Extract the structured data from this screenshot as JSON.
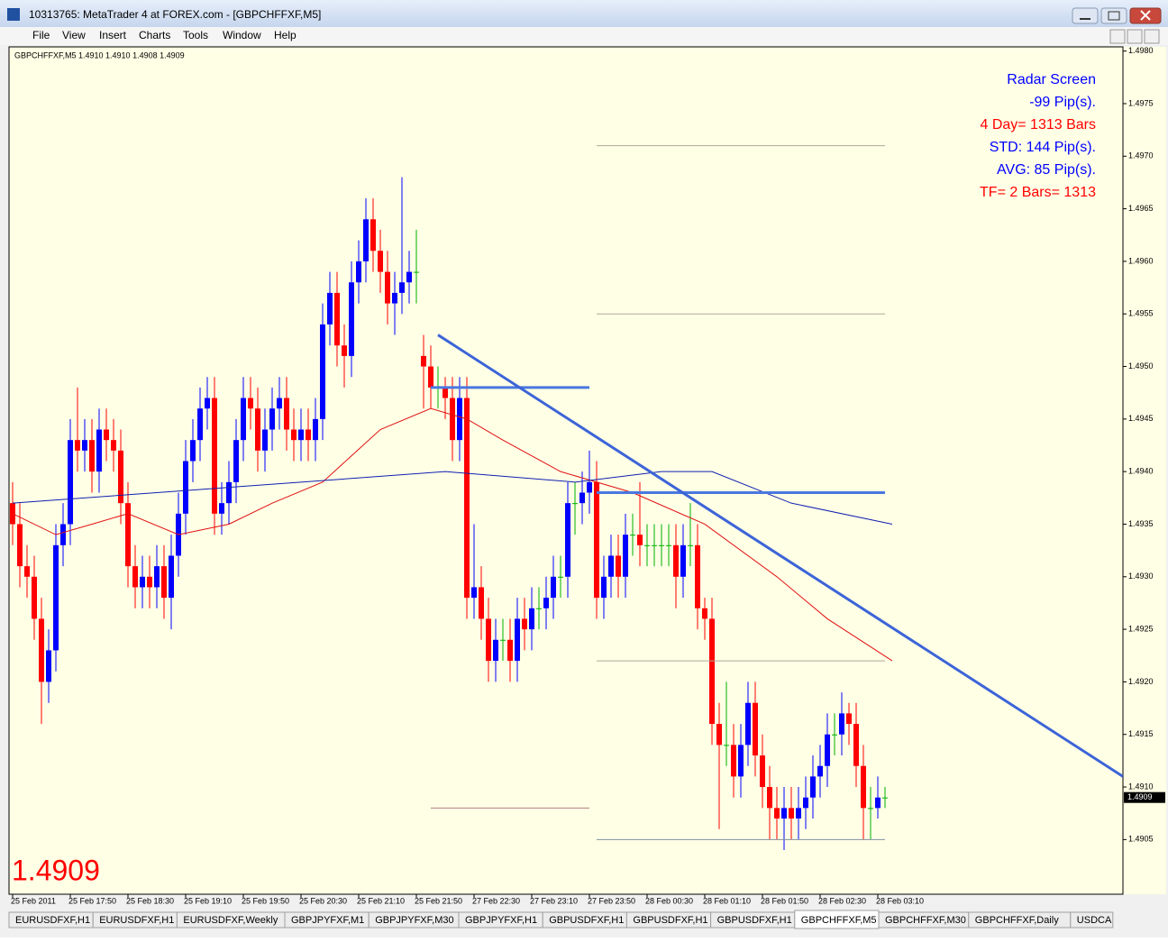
{
  "window": {
    "title": "10313765: MetaTrader 4 at FOREX.com - [GBPCHFFXF,M5]",
    "menu": [
      "File",
      "View",
      "Insert",
      "Charts",
      "Tools",
      "Window",
      "Help"
    ],
    "tabs": [
      "EURUSDFXF,H1",
      "EURUSDFXF,H1",
      "EURUSDFXF,Weekly",
      "GBPJPYFXF,M1",
      "GBPJPYFXF,M30",
      "GBPJPYFXF,H1",
      "GBPUSDFXF,H1",
      "GBPUSDFXF,H1",
      "GBPUSDFXF,H1",
      "GBPCHFFXF,M5",
      "GBPCHFFXF,M30",
      "GBPCHFFXF,Daily",
      "USDCA"
    ],
    "active_tab": 9
  },
  "chart_data": {
    "type": "candlestick",
    "symbol_info": "GBPCHFFXF,M5  1.4910 1.4910 1.4908 1.4909",
    "categories": [
      "25 Feb 2011",
      null,
      null,
      null,
      null,
      null,
      null,
      null,
      "25 Feb 17:50",
      null,
      null,
      null,
      null,
      null,
      null,
      null,
      "25 Feb 18:30",
      null,
      null,
      null,
      null,
      null,
      null,
      null,
      "25 Feb 19:10",
      null,
      null,
      null,
      null,
      null,
      null,
      null,
      "25 Feb 19:50",
      null,
      null,
      null,
      null,
      null,
      null,
      null,
      "25 Feb 20:30",
      null,
      null,
      null,
      null,
      null,
      null,
      null,
      "25 Feb 21:10",
      null,
      null,
      null,
      null,
      null,
      null,
      null,
      "25 Feb 21:50",
      null,
      null,
      null,
      null,
      null,
      null,
      null,
      "27 Feb 22:30",
      null,
      null,
      null,
      null,
      null,
      null,
      null,
      "27 Feb 23:10",
      null,
      null,
      null,
      null,
      null,
      null,
      null,
      "27 Feb 23:50",
      null,
      null,
      null,
      null,
      null,
      null,
      null,
      "28 Feb 00:30",
      null,
      null,
      null,
      null,
      null,
      null,
      null,
      "28 Feb 01:10",
      null,
      null,
      null,
      null,
      null,
      null,
      null,
      "28 Feb 01:50",
      null,
      null,
      null,
      null,
      null,
      null,
      null,
      "28 Feb 02:30",
      null,
      null,
      null,
      null,
      null,
      null,
      null,
      "28 Feb 03:10",
      null
    ],
    "candles": [
      [
        1.4937,
        1.4939,
        1.4933,
        1.4935
      ],
      [
        1.4935,
        1.4937,
        1.4929,
        1.4931
      ],
      [
        1.4931,
        1.4933,
        1.4928,
        1.493
      ],
      [
        1.493,
        1.4932,
        1.4924,
        1.4926
      ],
      [
        1.4926,
        1.4928,
        1.4916,
        1.492
      ],
      [
        1.492,
        1.4925,
        1.4918,
        1.4923
      ],
      [
        1.4923,
        1.4935,
        1.4921,
        1.4933
      ],
      [
        1.4933,
        1.4937,
        1.4931,
        1.4935
      ],
      [
        1.4935,
        1.4945,
        1.4933,
        1.4943
      ],
      [
        1.4943,
        1.4948,
        1.494,
        1.4942
      ],
      [
        1.4942,
        1.4945,
        1.494,
        1.4943
      ],
      [
        1.4943,
        1.4945,
        1.4938,
        1.494
      ],
      [
        1.494,
        1.4946,
        1.4938,
        1.4944
      ],
      [
        1.4944,
        1.4946,
        1.4941,
        1.4943
      ],
      [
        1.4943,
        1.4945,
        1.494,
        1.4942
      ],
      [
        1.4942,
        1.4944,
        1.4935,
        1.4937
      ],
      [
        1.4937,
        1.4939,
        1.4929,
        1.4931
      ],
      [
        1.4931,
        1.4933,
        1.4927,
        1.4929
      ],
      [
        1.4929,
        1.4932,
        1.4927,
        1.493
      ],
      [
        1.493,
        1.4932,
        1.4927,
        1.4929
      ],
      [
        1.4929,
        1.4933,
        1.4927,
        1.4931
      ],
      [
        1.4931,
        1.4933,
        1.4926,
        1.4928
      ],
      [
        1.4928,
        1.4934,
        1.4925,
        1.4932
      ],
      [
        1.4932,
        1.4938,
        1.493,
        1.4936
      ],
      [
        1.4936,
        1.4943,
        1.4934,
        1.4941
      ],
      [
        1.4941,
        1.4945,
        1.4939,
        1.4943
      ],
      [
        1.4943,
        1.4948,
        1.4941,
        1.4946
      ],
      [
        1.4946,
        1.4949,
        1.4944,
        1.4947
      ],
      [
        1.4947,
        1.4949,
        1.4934,
        1.4936
      ],
      [
        1.4936,
        1.4939,
        1.4934,
        1.4937
      ],
      [
        1.4937,
        1.4941,
        1.4935,
        1.4939
      ],
      [
        1.4939,
        1.4945,
        1.4937,
        1.4943
      ],
      [
        1.4943,
        1.4949,
        1.4941,
        1.4947
      ],
      [
        1.4947,
        1.4949,
        1.4944,
        1.4946
      ],
      [
        1.4946,
        1.4948,
        1.494,
        1.4942
      ],
      [
        1.4942,
        1.4946,
        1.494,
        1.4944
      ],
      [
        1.4944,
        1.4948,
        1.4942,
        1.4946
      ],
      [
        1.4946,
        1.4949,
        1.4944,
        1.4947
      ],
      [
        1.4947,
        1.4949,
        1.4942,
        1.4944
      ],
      [
        1.4944,
        1.4946,
        1.4941,
        1.4943
      ],
      [
        1.4943,
        1.4946,
        1.4941,
        1.4944
      ],
      [
        1.4944,
        1.4946,
        1.4941,
        1.4943
      ],
      [
        1.4943,
        1.4947,
        1.4941,
        1.4945
      ],
      [
        1.4945,
        1.4956,
        1.4943,
        1.4954
      ],
      [
        1.4954,
        1.4959,
        1.4952,
        1.4957
      ],
      [
        1.4957,
        1.4959,
        1.495,
        1.4952
      ],
      [
        1.4952,
        1.4954,
        1.4948,
        1.4951
      ],
      [
        1.4951,
        1.496,
        1.4949,
        1.4958
      ],
      [
        1.4958,
        1.4962,
        1.4956,
        1.496
      ],
      [
        1.496,
        1.4966,
        1.4958,
        1.4964
      ],
      [
        1.4964,
        1.4966,
        1.4959,
        1.4961
      ],
      [
        1.4961,
        1.4963,
        1.4957,
        1.4959
      ],
      [
        1.4959,
        1.4961,
        1.4954,
        1.4956
      ],
      [
        1.4956,
        1.4959,
        1.4953,
        1.4957
      ],
      [
        1.4957,
        1.4968,
        1.4955,
        1.4958
      ],
      [
        1.4958,
        1.4961,
        1.4956,
        1.4959
      ],
      [
        1.4959,
        1.4963,
        1.4956,
        1.4959
      ],
      [
        1.4951,
        1.4953,
        1.4946,
        1.495
      ],
      [
        1.495,
        1.4952,
        1.4946,
        1.4948
      ],
      [
        1.4948,
        1.495,
        1.4946,
        1.4948
      ],
      [
        1.4948,
        1.4949,
        1.4945,
        1.4947
      ],
      [
        1.4947,
        1.4949,
        1.4941,
        1.4943
      ],
      [
        1.4943,
        1.4949,
        1.4941,
        1.4947
      ],
      [
        1.4947,
        1.4949,
        1.4926,
        1.4928
      ],
      [
        1.4928,
        1.4935,
        1.4926,
        1.4929
      ],
      [
        1.4929,
        1.4931,
        1.4924,
        1.4926
      ],
      [
        1.4926,
        1.4928,
        1.492,
        1.4922
      ],
      [
        1.4922,
        1.4926,
        1.492,
        1.4924
      ],
      [
        1.4924,
        1.4926,
        1.4922,
        1.4924
      ],
      [
        1.4924,
        1.4926,
        1.492,
        1.4922
      ],
      [
        1.4922,
        1.4928,
        1.492,
        1.4926
      ],
      [
        1.4926,
        1.4928,
        1.4923,
        1.4925
      ],
      [
        1.4925,
        1.4929,
        1.4923,
        1.4927
      ],
      [
        1.4927,
        1.4929,
        1.4925,
        1.4927
      ],
      [
        1.4927,
        1.493,
        1.4925,
        1.4928
      ],
      [
        1.4928,
        1.4932,
        1.4926,
        1.493
      ],
      [
        1.493,
        1.4932,
        1.4928,
        1.493
      ],
      [
        1.493,
        1.4939,
        1.4928,
        1.4937
      ],
      [
        1.4937,
        1.4939,
        1.4934,
        1.4937
      ],
      [
        1.4937,
        1.494,
        1.4935,
        1.4938
      ],
      [
        1.4938,
        1.4942,
        1.4936,
        1.4939
      ],
      [
        1.4939,
        1.4941,
        1.4926,
        1.4928
      ],
      [
        1.4928,
        1.4932,
        1.4926,
        1.493
      ],
      [
        1.493,
        1.4934,
        1.4928,
        1.4932
      ],
      [
        1.4932,
        1.4934,
        1.4928,
        1.493
      ],
      [
        1.493,
        1.4936,
        1.4928,
        1.4934
      ],
      [
        1.4934,
        1.4936,
        1.4932,
        1.4934
      ],
      [
        1.4934,
        1.4939,
        1.4931,
        1.4933
      ],
      [
        1.4933,
        1.4935,
        1.4931,
        1.4933
      ],
      [
        1.4933,
        1.4935,
        1.4931,
        1.4933
      ],
      [
        1.4933,
        1.4935,
        1.4931,
        1.4933
      ],
      [
        1.4933,
        1.4935,
        1.4931,
        1.4933
      ],
      [
        1.4933,
        1.4935,
        1.4927,
        1.493
      ],
      [
        1.493,
        1.4935,
        1.4928,
        1.4933
      ],
      [
        1.4933,
        1.4937,
        1.4931,
        1.4933
      ],
      [
        1.4933,
        1.4935,
        1.4925,
        1.4927
      ],
      [
        1.4927,
        1.4928,
        1.4924,
        1.4926
      ],
      [
        1.4926,
        1.4928,
        1.4914,
        1.4916
      ],
      [
        1.4916,
        1.4918,
        1.4906,
        1.4914
      ],
      [
        1.4914,
        1.492,
        1.4912,
        1.4914
      ],
      [
        1.4914,
        1.4916,
        1.4909,
        1.4911
      ],
      [
        1.4911,
        1.4916,
        1.4909,
        1.4914
      ],
      [
        1.4914,
        1.492,
        1.4912,
        1.4918
      ],
      [
        1.4918,
        1.492,
        1.4911,
        1.4913
      ],
      [
        1.4913,
        1.4915,
        1.4908,
        1.491
      ],
      [
        1.491,
        1.4912,
        1.4905,
        1.4908
      ],
      [
        1.4908,
        1.491,
        1.4905,
        1.4907
      ],
      [
        1.4907,
        1.491,
        1.4904,
        1.4908
      ],
      [
        1.4908,
        1.491,
        1.4905,
        1.4907
      ],
      [
        1.4907,
        1.491,
        1.4905,
        1.4908
      ],
      [
        1.4908,
        1.4911,
        1.4906,
        1.4909
      ],
      [
        1.4909,
        1.4913,
        1.4907,
        1.4911
      ],
      [
        1.4911,
        1.4914,
        1.4909,
        1.4912
      ],
      [
        1.4912,
        1.4917,
        1.491,
        1.4915
      ],
      [
        1.4915,
        1.4917,
        1.4913,
        1.4915
      ],
      [
        1.4915,
        1.4919,
        1.4913,
        1.4917
      ],
      [
        1.4917,
        1.4918,
        1.4914,
        1.4916
      ],
      [
        1.4916,
        1.4918,
        1.491,
        1.4912
      ],
      [
        1.4912,
        1.4914,
        1.4905,
        1.4908
      ],
      [
        1.4908,
        1.491,
        1.4905,
        1.4908
      ],
      [
        1.4908,
        1.4911,
        1.4907,
        1.4909
      ],
      [
        1.4909,
        1.491,
        1.4908,
        1.4909
      ]
    ],
    "up_color": "#0000ff",
    "down_color": "#ff0000",
    "doji_color": "#00b000",
    "ylim": [
      1.48998,
      1.49804
    ],
    "yticks": [
      {
        "value": 1.4905,
        "label": "1.4905"
      },
      {
        "value": 1.491,
        "label": "1.4910"
      },
      {
        "value": 1.4915,
        "label": "1.4915"
      },
      {
        "value": 1.492,
        "label": "1.4920"
      },
      {
        "value": 1.4925,
        "label": "1.4925"
      },
      {
        "value": 1.493,
        "label": "1.4930"
      },
      {
        "value": 1.4935,
        "label": "1.4935"
      },
      {
        "value": 1.494,
        "label": "1.4940"
      },
      {
        "value": 1.4945,
        "label": "1.4945"
      },
      {
        "value": 1.495,
        "label": "1.4950"
      },
      {
        "value": 1.4955,
        "label": "1.4955"
      },
      {
        "value": 1.496,
        "label": "1.4960"
      },
      {
        "value": 1.4965,
        "label": "1.4965"
      },
      {
        "value": 1.497,
        "label": "1.4970"
      },
      {
        "value": 1.4975,
        "label": "1.4975"
      },
      {
        "value": 1.498,
        "label": "1.4980"
      }
    ],
    "current_price": 1.4909,
    "series": [
      {
        "color": "#e01010",
        "x": [
          0,
          6,
          11,
          16,
          23,
          30,
          36,
          43,
          51,
          58,
          63,
          68,
          76,
          86,
          96,
          106,
          113,
          122
        ],
        "values": [
          1.4936,
          1.4934,
          1.4935,
          1.4936,
          1.4934,
          1.4935,
          1.4937,
          1.4939,
          1.4944,
          1.4946,
          1.4945,
          1.4943,
          1.494,
          1.4938,
          1.4935,
          1.493,
          1.4926,
          1.4922
        ]
      },
      {
        "color": "#1020b0",
        "x": [
          0,
          20,
          40,
          60,
          78,
          90,
          97,
          108,
          122
        ],
        "values": [
          1.4937,
          1.4938,
          1.4939,
          1.494,
          1.4939,
          1.494,
          1.494,
          1.4937,
          1.4935
        ]
      }
    ],
    "levels": [
      {
        "value": 1.4971,
        "x": [
          81,
          121
        ],
        "color": "#b0a898"
      },
      {
        "value": 1.4955,
        "x": [
          81,
          121
        ],
        "color": "#b0a898"
      },
      {
        "value": 1.4922,
        "x": [
          81,
          121
        ],
        "color": "#b0a898"
      },
      {
        "value": 1.4905,
        "x": [
          81,
          121
        ],
        "color": "#8090a0"
      },
      {
        "value": 1.4908,
        "x": [
          58,
          80
        ],
        "color": "#b08080"
      }
    ],
    "blue_lines": [
      {
        "value": 1.4948,
        "x": [
          58,
          80
        ],
        "color": "#4a78e0"
      },
      {
        "value": 1.4938,
        "x": [
          81,
          121
        ],
        "color": "#4a78e0"
      }
    ],
    "trendline": {
      "x": [
        59,
        154
      ],
      "values": [
        1.4953,
        1.4911
      ],
      "color": "#3c64d8"
    },
    "annotations": [
      {
        "text": "Radar Screen",
        "color": "#0000ff"
      },
      {
        "text": "-99 Pip(s).",
        "color": "#0000ff"
      },
      {
        "text": "4 Day= 1313 Bars",
        "color": "#ff0000"
      },
      {
        "text": "STD: 144 Pip(s).",
        "color": "#0000ff"
      },
      {
        "text": "AVG: 85 Pip(s).",
        "color": "#0000ff"
      },
      {
        "text": "TF= 2 Bars= 1313",
        "color": "#ff0000"
      }
    ]
  }
}
